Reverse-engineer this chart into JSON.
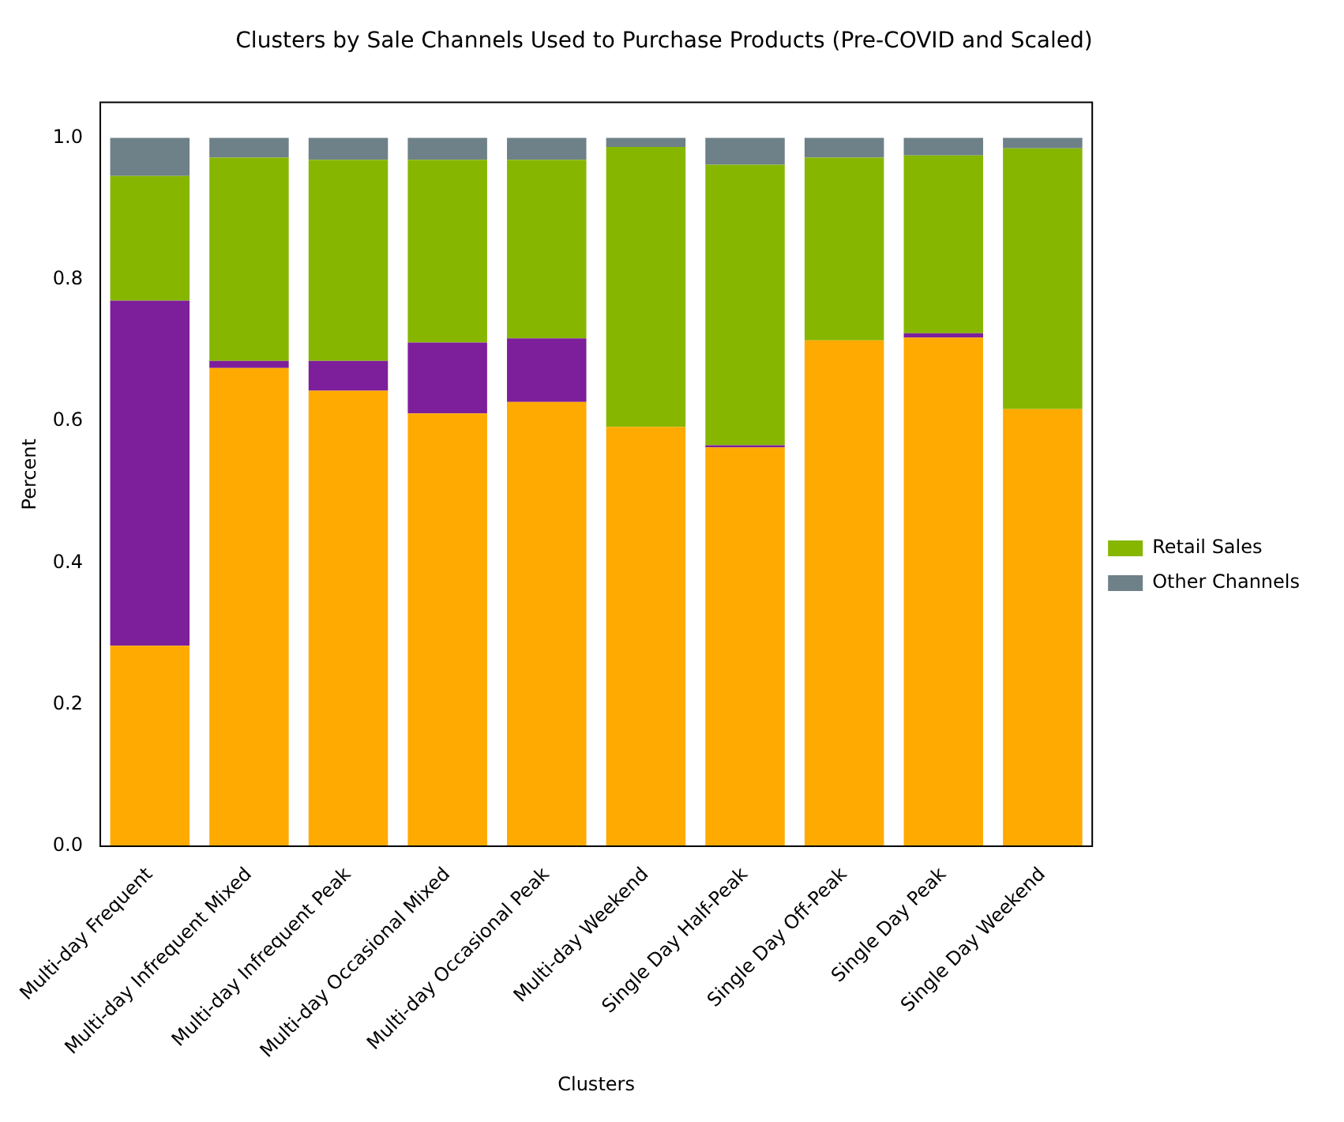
{
  "chart_data": {
    "type": "bar",
    "title": "Clusters by Sale Channels Used to Purchase Products (Pre-COVID and Scaled)",
    "xlabel": "Clusters",
    "ylabel": "Percent",
    "categories": [
      "Multi-day Frequent",
      "Multi-day Infrequent Mixed",
      "Multi-day Infrequent Peak",
      "Multi-day Occasional Mixed",
      "Multi-day Occasional Peak",
      "Multi-day Weekend",
      "Single Day Half-Peak",
      "Single Day Off-Peak",
      "Single Day Peak",
      "Single Day Weekend"
    ],
    "stacked": true,
    "legend": "right",
    "grid": false,
    "ylim": [
      0,
      1.05
    ],
    "yticks": [
      {
        "value": 0,
        "label": "0.0"
      },
      {
        "value": 0.2,
        "label": "0.2"
      },
      {
        "value": 0.4,
        "label": "0.4"
      },
      {
        "value": 0.6,
        "label": "0.6"
      },
      {
        "value": 0.8,
        "label": "0.8"
      },
      {
        "value": 1,
        "label": "1.0"
      }
    ],
    "series": [
      {
        "color": "#ffaa00",
        "values": [
          0.283,
          0.675,
          0.643,
          0.611,
          0.627,
          0.592,
          0.563,
          0.714,
          0.718,
          0.617
        ]
      },
      {
        "color": "#7d1f9a",
        "values": [
          0.487,
          0.01,
          0.042,
          0.1,
          0.09,
          0,
          0.003,
          0,
          0.006,
          0
        ]
      },
      {
        "name": "Retail Sales",
        "color": "#86b600",
        "values": [
          0.176,
          0.287,
          0.284,
          0.258,
          0.252,
          0.395,
          0.396,
          0.258,
          0.251,
          0.368
        ]
      },
      {
        "name": "Other Channels",
        "color": "#6e8088",
        "values": [
          0.054,
          0.028,
          0.031,
          0.031,
          0.031,
          0.013,
          0.038,
          0.028,
          0.025,
          0.015
        ]
      }
    ]
  }
}
